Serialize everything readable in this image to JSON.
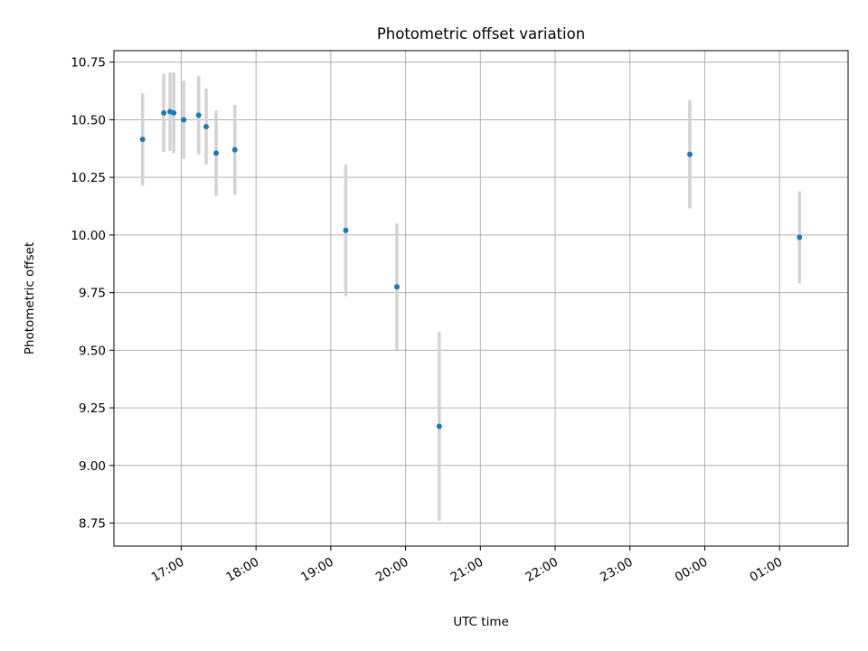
{
  "chart_data": {
    "type": "scatter",
    "title": "Photometric offset variation",
    "xlabel": "UTC time",
    "ylabel": "Photometric offset",
    "x_is_time": true,
    "x_reference_date": "",
    "xlim": [
      "16:06",
      "01:55 (+1 day)"
    ],
    "ylim": [
      8.65,
      10.8
    ],
    "grid": true,
    "x_ticks": [
      "17:00",
      "18:00",
      "19:00",
      "20:00",
      "21:00",
      "22:00",
      "23:00",
      "00:00",
      "01:00"
    ],
    "y_ticks": [
      "8.75",
      "9.00",
      "9.25",
      "9.50",
      "9.75",
      "10.00",
      "10.25",
      "10.50",
      "10.75"
    ],
    "errorbar_color": "#d3d3d3",
    "point_color": "#1f77b4",
    "points": [
      {
        "x": "16:29",
        "y": 10.415,
        "yerr": 0.2
      },
      {
        "x": "16:46",
        "y": 10.53,
        "yerr": 0.17
      },
      {
        "x": "16:51",
        "y": 10.535,
        "yerr": 0.17
      },
      {
        "x": "16:54",
        "y": 10.53,
        "yerr": 0.175
      },
      {
        "x": "17:02",
        "y": 10.5,
        "yerr": 0.17
      },
      {
        "x": "17:14",
        "y": 10.52,
        "yerr": 0.17
      },
      {
        "x": "17:20",
        "y": 10.47,
        "yerr": 0.165
      },
      {
        "x": "17:28",
        "y": 10.355,
        "yerr": 0.185
      },
      {
        "x": "17:43",
        "y": 10.37,
        "yerr": 0.195
      },
      {
        "x": "19:12",
        "y": 10.02,
        "yerr": 0.285
      },
      {
        "x": "19:53",
        "y": 9.775,
        "yerr": 0.275
      },
      {
        "x": "20:27",
        "y": 9.17,
        "yerr": 0.41
      },
      {
        "x": "23:48",
        "y": 10.35,
        "yerr": 0.235
      },
      {
        "x": "01:16 (+1 day)",
        "y": 9.99,
        "yerr": 0.2
      }
    ]
  }
}
